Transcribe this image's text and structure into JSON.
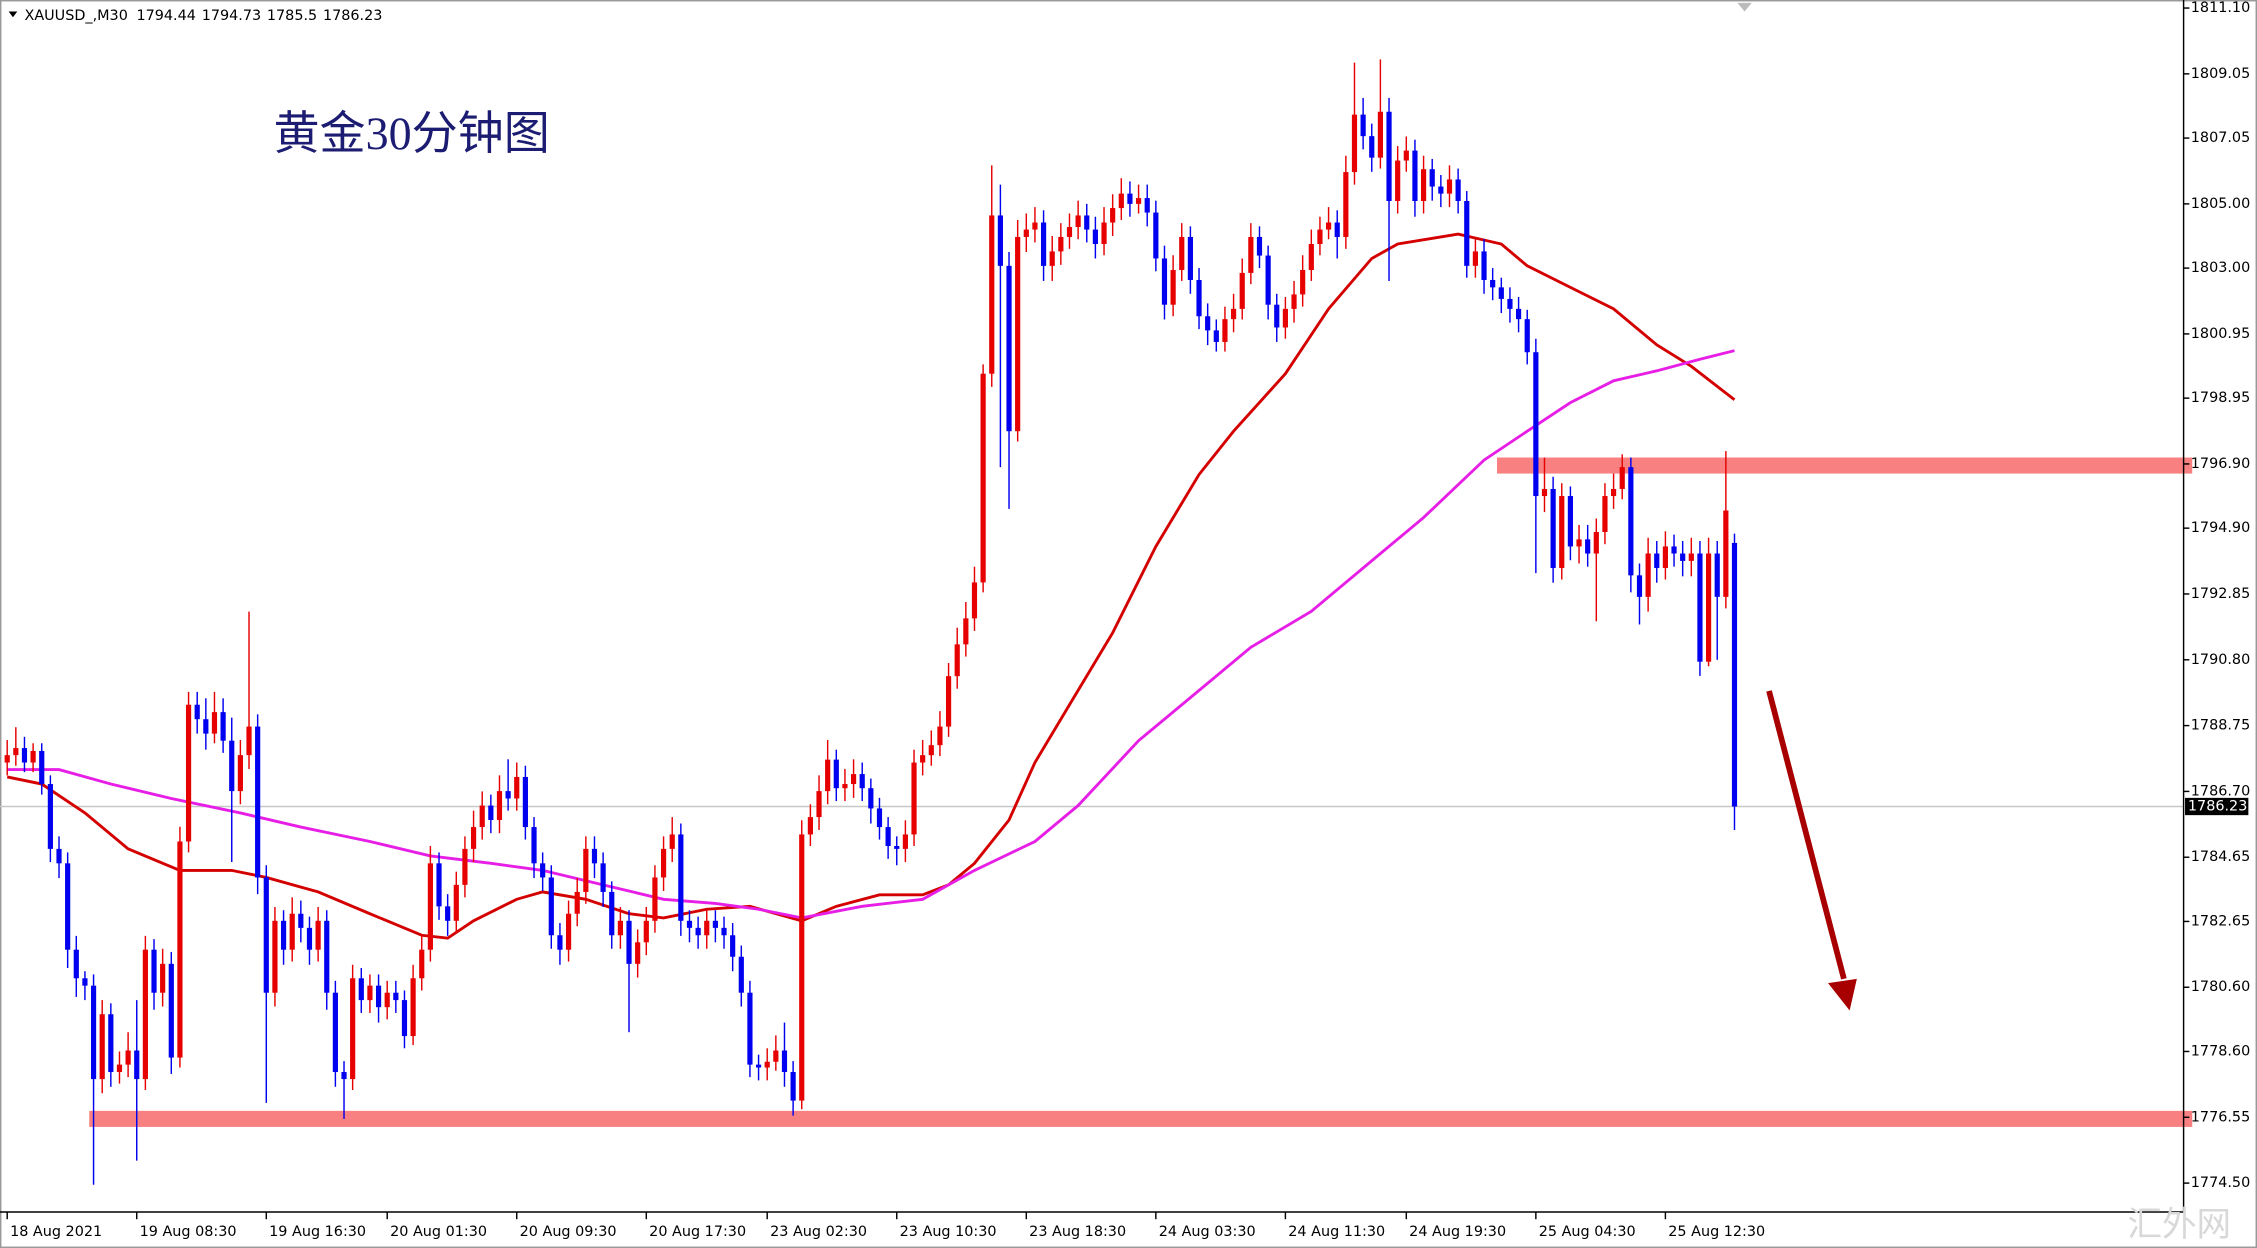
{
  "chart_data": {
    "type": "candlestick",
    "symbol": "XAUUSD_,M30",
    "title": "黄金30分钟图",
    "watermark": "汇外网",
    "up_color": "#e60000",
    "down_color": "#0000f0",
    "ylim": [
      1773.6,
      1811.35
    ],
    "yticks": [
      {
        "value": 1811.1,
        "label": "1811.10"
      },
      1809.05,
      1807.05,
      {
        "value": 1805,
        "label": "1805.00"
      },
      {
        "value": 1803,
        "label": "1803.00"
      },
      1800.95,
      1798.95,
      {
        "value": 1796.9,
        "label": "1796.90"
      },
      {
        "value": 1794.9,
        "label": "1794.90"
      },
      1792.85,
      {
        "value": 1790.8,
        "label": "1790.80"
      },
      1788.75,
      {
        "value": 1786.7,
        "label": "1786.70"
      },
      1784.65,
      1782.65,
      {
        "value": 1780.6,
        "label": "1780.60"
      },
      {
        "value": 1778.6,
        "label": "1778.60"
      },
      1776.55,
      {
        "value": 1774.5,
        "label": "1774.50"
      }
    ],
    "xticks": [
      {
        "value": 0,
        "label": "18 Aug 2021"
      },
      {
        "value": 15,
        "label": "19 Aug 08:30"
      },
      {
        "value": 30,
        "label": "19 Aug 16:30"
      },
      {
        "value": 44,
        "label": "20 Aug 01:30"
      },
      {
        "value": 59,
        "label": "20 Aug 09:30"
      },
      {
        "value": 74,
        "label": "20 Aug 17:30"
      },
      {
        "value": 88,
        "label": "23 Aug 02:30"
      },
      {
        "value": 103,
        "label": "23 Aug 10:30"
      },
      {
        "value": 118,
        "label": "23 Aug 18:30"
      },
      {
        "value": 133,
        "label": "24 Aug 03:30"
      },
      {
        "value": 148,
        "label": "24 Aug 11:30"
      },
      {
        "value": 162,
        "label": "24 Aug 19:30"
      },
      {
        "value": 177,
        "label": "25 Aug 04:30"
      },
      {
        "value": 192,
        "label": "25 Aug 12:30"
      }
    ],
    "open": [
      1787.6,
      1787.83,
      1788.05,
      1787.6,
      1787.96,
      1786.93,
      1784.91,
      1784.46,
      1781.77,
      1780.88,
      1780.65,
      1777.74,
      1779.76,
      1777.96,
      1778.19,
      1778.63,
      1777.74,
      1781.77,
      1780.43,
      1781.33,
      1778.41,
      1785.14,
      1789.4,
      1788.95,
      1788.5,
      1789.17,
      1788.28,
      1786.71,
      1787.83,
      1788.72,
      1784.02,
      1780.43,
      1782.67,
      1781.77,
      1782.89,
      1782.45,
      1781.77,
      1782.67,
      1780.43,
      1777.96,
      1777.74,
      1780.88,
      1780.2,
      1780.65,
      1779.98,
      1780.43,
      1780.2,
      1779.08,
      1780.88,
      1781.77,
      1784.46,
      1783.12,
      1782.67,
      1783.79,
      1784.91,
      1785.59,
      1786.26,
      1785.81,
      1786.71,
      1786.48,
      1787.15,
      1785.59,
      1784.46,
      1784.02,
      1782.22,
      1781.77,
      1782.89,
      1783.57,
      1784.91,
      1784.46,
      1783.57,
      1782.22,
      1782.67,
      1781.33,
      1782.0,
      1782.67,
      1784.02,
      1784.91,
      1785.36,
      1782.67,
      1782.45,
      1782.22,
      1782.67,
      1782.45,
      1782.22,
      1781.55,
      1780.43,
      1778.19,
      1778.1,
      1778.28,
      1778.63,
      1777.96,
      1777.07,
      1785.36,
      1785.9,
      1786.71,
      1787.69,
      1786.8,
      1786.93,
      1787.24,
      1786.8,
      1786.17,
      1785.59,
      1785.0,
      1784.91,
      1785.36,
      1787.6,
      1787.83,
      1788.14,
      1788.72,
      1790.29,
      1791.28,
      1792.09,
      1793.21,
      1799.71,
      1804.64,
      1803.07,
      1797.92,
      1803.97,
      1804.2,
      1804.42,
      1803.07,
      1803.52,
      1803.97,
      1804.28,
      1804.64,
      1804.2,
      1803.75,
      1804.42,
      1804.87,
      1805.32,
      1805.0,
      1805.18,
      1804.73,
      1803.3,
      1801.86,
      1802.94,
      1803.97,
      1802.63,
      1801.5,
      1801.06,
      1800.7,
      1801.41,
      1801.73,
      1802.85,
      1803.97,
      1803.39,
      1801.86,
      1801.15,
      1801.73,
      1802.18,
      1802.94,
      1803.75,
      1804.2,
      1804.42,
      1803.97,
      1805.99,
      1807.78,
      1807.11,
      1806.44,
      1807.87,
      1805.09,
      1806.35,
      1806.66,
      1805.09,
      1806.08,
      1805.54,
      1805.32,
      1805.76,
      1805.09,
      1803.07,
      1803.52,
      1802.63,
      1802.4,
      1802.04,
      1801.73,
      1801.41,
      1800.38,
      1795.9,
      1796.12,
      1793.66,
      1795.9,
      1794.33,
      1794.55,
      1794.11,
      1794.78,
      1795.9,
      1796.12,
      1796.8,
      1793.43,
      1792.76,
      1794.11,
      1793.66,
      1794.33,
      1794.11,
      1793.88,
      1794.11,
      1790.74,
      1794.11,
      1792.76,
      1794.44
    ],
    "high": [
      1788.3,
      1788.7,
      1788.4,
      1788.2,
      1788.2,
      1787.2,
      1785.3,
      1784.8,
      1782.2,
      1781.1,
      1781.0,
      1780.2,
      1780.1,
      1778.6,
      1779.2,
      1780.2,
      1782.2,
      1782.1,
      1781.8,
      1781.7,
      1785.6,
      1789.8,
      1789.8,
      1789.6,
      1789.8,
      1789.6,
      1789.0,
      1788.3,
      1792.3,
      1789.1,
      1784.4,
      1783.1,
      1783.0,
      1783.4,
      1783.3,
      1782.8,
      1783.1,
      1783.0,
      1780.8,
      1778.3,
      1781.3,
      1781.2,
      1781.0,
      1781.0,
      1780.8,
      1780.8,
      1780.5,
      1781.3,
      1782.2,
      1785.0,
      1784.8,
      1783.5,
      1784.2,
      1785.3,
      1786.1,
      1786.7,
      1786.6,
      1787.2,
      1787.7,
      1787.6,
      1787.5,
      1785.9,
      1784.8,
      1784.4,
      1782.6,
      1783.3,
      1784.0,
      1785.3,
      1785.3,
      1784.8,
      1783.9,
      1783.1,
      1783.0,
      1782.4,
      1783.1,
      1784.4,
      1785.3,
      1785.9,
      1785.7,
      1783.0,
      1782.8,
      1783.0,
      1783.0,
      1782.8,
      1782.6,
      1781.9,
      1780.8,
      1778.5,
      1778.7,
      1779.1,
      1779.5,
      1778.3,
      1785.8,
      1786.3,
      1787.2,
      1788.3,
      1788.0,
      1787.4,
      1787.7,
      1787.6,
      1787.1,
      1786.5,
      1785.9,
      1785.3,
      1785.8,
      1788.0,
      1788.3,
      1788.6,
      1789.2,
      1790.7,
      1791.8,
      1792.6,
      1793.7,
      1800.0,
      1806.2,
      1805.6,
      1803.5,
      1804.5,
      1804.7,
      1804.9,
      1804.8,
      1804.0,
      1804.4,
      1804.7,
      1805.1,
      1805.0,
      1804.6,
      1804.9,
      1805.3,
      1805.8,
      1805.7,
      1805.6,
      1805.6,
      1805.1,
      1803.7,
      1803.4,
      1804.4,
      1804.3,
      1803.0,
      1801.9,
      1801.4,
      1801.8,
      1802.2,
      1803.3,
      1804.4,
      1804.3,
      1803.7,
      1802.2,
      1802.1,
      1802.6,
      1803.4,
      1804.2,
      1804.6,
      1804.9,
      1804.8,
      1806.5,
      1809.4,
      1808.3,
      1807.5,
      1809.5,
      1808.3,
      1806.8,
      1807.1,
      1807.0,
      1806.5,
      1806.4,
      1805.9,
      1806.2,
      1806.1,
      1805.4,
      1803.9,
      1803.9,
      1803.0,
      1802.7,
      1802.4,
      1802.1,
      1801.7,
      1800.8,
      1797.1,
      1796.5,
      1796.3,
      1796.2,
      1795.0,
      1795.0,
      1795.2,
      1796.3,
      1796.6,
      1797.2,
      1797.1,
      1793.8,
      1794.6,
      1794.5,
      1794.8,
      1794.7,
      1794.5,
      1794.6,
      1794.5,
      1794.6,
      1794.5,
      1797.3,
      1794.73
    ],
    "low": [
      1787.2,
      1787.5,
      1787.3,
      1787.3,
      1786.6,
      1784.5,
      1784.0,
      1781.2,
      1780.3,
      1780.2,
      1774.45,
      1777.3,
      1777.5,
      1777.6,
      1777.8,
      1775.2,
      1777.4,
      1779.9,
      1780.0,
      1777.9,
      1778.1,
      1784.8,
      1788.5,
      1788.0,
      1788.2,
      1787.9,
      1784.5,
      1786.3,
      1787.4,
      1783.5,
      1777.0,
      1780.0,
      1781.3,
      1781.4,
      1782.0,
      1781.3,
      1781.4,
      1779.9,
      1777.5,
      1776.5,
      1777.4,
      1779.8,
      1779.8,
      1779.5,
      1779.6,
      1779.8,
      1778.7,
      1778.8,
      1780.5,
      1781.4,
      1782.7,
      1782.2,
      1782.3,
      1783.4,
      1784.5,
      1785.2,
      1785.4,
      1785.4,
      1786.1,
      1786.1,
      1785.2,
      1784.0,
      1783.6,
      1781.8,
      1781.3,
      1781.4,
      1782.5,
      1783.2,
      1784.0,
      1783.1,
      1781.8,
      1781.8,
      1779.2,
      1780.9,
      1781.6,
      1782.3,
      1783.6,
      1784.5,
      1782.2,
      1782.0,
      1781.8,
      1781.8,
      1782.0,
      1781.8,
      1781.1,
      1780.0,
      1777.8,
      1777.7,
      1777.7,
      1778.0,
      1777.5,
      1776.6,
      1776.8,
      1785.0,
      1785.5,
      1786.3,
      1786.4,
      1786.4,
      1786.5,
      1786.4,
      1785.7,
      1785.2,
      1784.6,
      1784.4,
      1784.5,
      1785.0,
      1787.2,
      1787.5,
      1787.8,
      1788.4,
      1789.9,
      1790.9,
      1791.7,
      1792.9,
      1799.3,
      1796.8,
      1795.5,
      1797.6,
      1803.5,
      1803.8,
      1802.6,
      1802.6,
      1803.1,
      1803.6,
      1803.9,
      1803.8,
      1803.3,
      1803.4,
      1804.0,
      1804.5,
      1804.6,
      1804.7,
      1804.3,
      1802.9,
      1801.4,
      1801.5,
      1802.6,
      1802.2,
      1801.1,
      1800.6,
      1800.4,
      1800.4,
      1801.0,
      1801.4,
      1802.5,
      1803.0,
      1801.4,
      1800.7,
      1800.8,
      1801.3,
      1801.8,
      1802.6,
      1803.4,
      1803.9,
      1803.3,
      1803.6,
      1805.6,
      1806.7,
      1806.0,
      1806.1,
      1802.6,
      1804.7,
      1806.0,
      1804.6,
      1804.7,
      1805.1,
      1804.9,
      1804.9,
      1804.7,
      1802.7,
      1802.7,
      1802.2,
      1802.0,
      1801.6,
      1801.3,
      1801.0,
      1800.0,
      1793.5,
      1795.4,
      1793.2,
      1793.3,
      1793.9,
      1793.8,
      1793.7,
      1792.0,
      1794.4,
      1795.5,
      1795.8,
      1792.9,
      1791.9,
      1792.3,
      1793.2,
      1793.3,
      1793.7,
      1793.4,
      1793.4,
      1790.3,
      1790.6,
      1790.8,
      1792.4,
      1785.5
    ],
    "close": [
      1787.83,
      1788.05,
      1787.6,
      1787.96,
      1786.93,
      1784.91,
      1784.46,
      1781.77,
      1780.88,
      1780.65,
      1777.74,
      1779.76,
      1777.96,
      1778.19,
      1778.63,
      1777.74,
      1781.77,
      1780.43,
      1781.33,
      1778.41,
      1785.14,
      1789.4,
      1788.95,
      1788.5,
      1789.17,
      1788.28,
      1786.71,
      1787.83,
      1788.72,
      1784.02,
      1780.43,
      1782.67,
      1781.77,
      1782.89,
      1782.45,
      1781.77,
      1782.67,
      1780.43,
      1777.96,
      1777.74,
      1780.88,
      1780.2,
      1780.65,
      1779.98,
      1780.43,
      1780.2,
      1779.08,
      1780.88,
      1781.77,
      1784.46,
      1783.12,
      1782.67,
      1783.79,
      1784.91,
      1785.59,
      1786.26,
      1785.81,
      1786.71,
      1786.48,
      1787.15,
      1785.59,
      1784.46,
      1784.02,
      1782.22,
      1781.77,
      1782.89,
      1783.57,
      1784.91,
      1784.46,
      1783.57,
      1782.22,
      1782.67,
      1781.33,
      1782.0,
      1782.67,
      1784.02,
      1784.91,
      1785.36,
      1782.67,
      1782.45,
      1782.22,
      1782.67,
      1782.45,
      1782.22,
      1781.55,
      1780.43,
      1778.19,
      1778.1,
      1778.28,
      1778.63,
      1777.96,
      1777.07,
      1785.36,
      1785.9,
      1786.71,
      1787.69,
      1786.8,
      1786.93,
      1787.24,
      1786.8,
      1786.17,
      1785.59,
      1785.0,
      1784.91,
      1785.36,
      1787.6,
      1787.83,
      1788.14,
      1788.72,
      1790.29,
      1791.28,
      1792.09,
      1793.21,
      1799.71,
      1804.64,
      1803.07,
      1797.92,
      1803.97,
      1804.2,
      1804.42,
      1803.07,
      1803.52,
      1803.97,
      1804.28,
      1804.64,
      1804.2,
      1803.75,
      1804.42,
      1804.87,
      1805.32,
      1805.0,
      1805.18,
      1804.73,
      1803.3,
      1801.86,
      1802.94,
      1803.97,
      1802.63,
      1801.5,
      1801.06,
      1800.7,
      1801.41,
      1801.73,
      1802.85,
      1803.97,
      1803.39,
      1801.86,
      1801.15,
      1801.73,
      1802.18,
      1802.94,
      1803.75,
      1804.2,
      1804.42,
      1803.97,
      1805.99,
      1807.78,
      1807.11,
      1806.44,
      1807.87,
      1805.09,
      1806.35,
      1806.66,
      1805.09,
      1806.08,
      1805.54,
      1805.32,
      1805.76,
      1805.09,
      1803.07,
      1803.52,
      1802.63,
      1802.4,
      1802.04,
      1801.73,
      1801.41,
      1800.38,
      1795.9,
      1796.12,
      1793.66,
      1795.9,
      1794.33,
      1794.55,
      1794.11,
      1794.78,
      1795.9,
      1796.12,
      1796.8,
      1793.43,
      1792.76,
      1794.11,
      1793.66,
      1794.33,
      1794.11,
      1793.88,
      1794.11,
      1790.74,
      1794.11,
      1792.76,
      1795.45,
      1786.23
    ],
    "moving_averages": [
      {
        "color": "#d40000",
        "x": [
          0,
          4,
          9,
          14,
          20,
          26,
          30,
          36,
          42,
          48,
          51,
          54,
          59,
          62,
          67,
          72,
          76,
          81,
          86,
          92,
          96,
          101,
          106,
          109,
          112,
          116,
          119,
          123,
          128,
          133,
          138,
          142,
          148,
          153,
          158,
          161,
          166,
          168,
          173,
          176,
          181,
          186,
          191,
          195,
          200
        ],
        "values": [
          1787.15,
          1786.93,
          1786.03,
          1784.91,
          1784.24,
          1784.24,
          1784.02,
          1783.57,
          1782.89,
          1782.22,
          1782.13,
          1782.67,
          1783.34,
          1783.57,
          1783.34,
          1782.89,
          1782.76,
          1783.03,
          1783.12,
          1782.67,
          1783.12,
          1783.48,
          1783.48,
          1783.79,
          1784.46,
          1785.81,
          1787.6,
          1789.4,
          1791.64,
          1794.33,
          1796.57,
          1797.92,
          1799.71,
          1801.73,
          1803.3,
          1803.75,
          1803.97,
          1804.06,
          1803.75,
          1803.07,
          1802.4,
          1801.73,
          1800.61,
          1799.94,
          1798.9
        ]
      },
      {
        "color": "#e61ee6",
        "x": [
          0,
          6,
          12,
          19,
          27,
          34,
          42,
          49,
          56,
          62,
          69,
          76,
          82,
          87,
          92,
          99,
          106,
          112,
          119,
          124,
          131,
          137,
          144,
          151,
          157,
          164,
          171,
          176,
          181,
          186,
          191,
          196,
          200
        ],
        "values": [
          1787.38,
          1787.38,
          1786.93,
          1786.48,
          1786.03,
          1785.59,
          1785.14,
          1784.69,
          1784.46,
          1784.24,
          1783.79,
          1783.34,
          1783.21,
          1783.03,
          1782.76,
          1783.12,
          1783.34,
          1784.24,
          1785.14,
          1786.26,
          1788.28,
          1789.62,
          1791.19,
          1792.31,
          1793.66,
          1795.23,
          1797.02,
          1797.92,
          1798.81,
          1799.49,
          1799.8,
          1800.16,
          1800.43
        ]
      }
    ],
    "zones": [
      {
        "top": 1797.1,
        "bottom": 1796.6,
        "start": 173,
        "color": "#f88080"
      },
      {
        "top": 1776.75,
        "bottom": 1776.25,
        "start": 10,
        "color": "#f88080"
      }
    ]
  }
}
